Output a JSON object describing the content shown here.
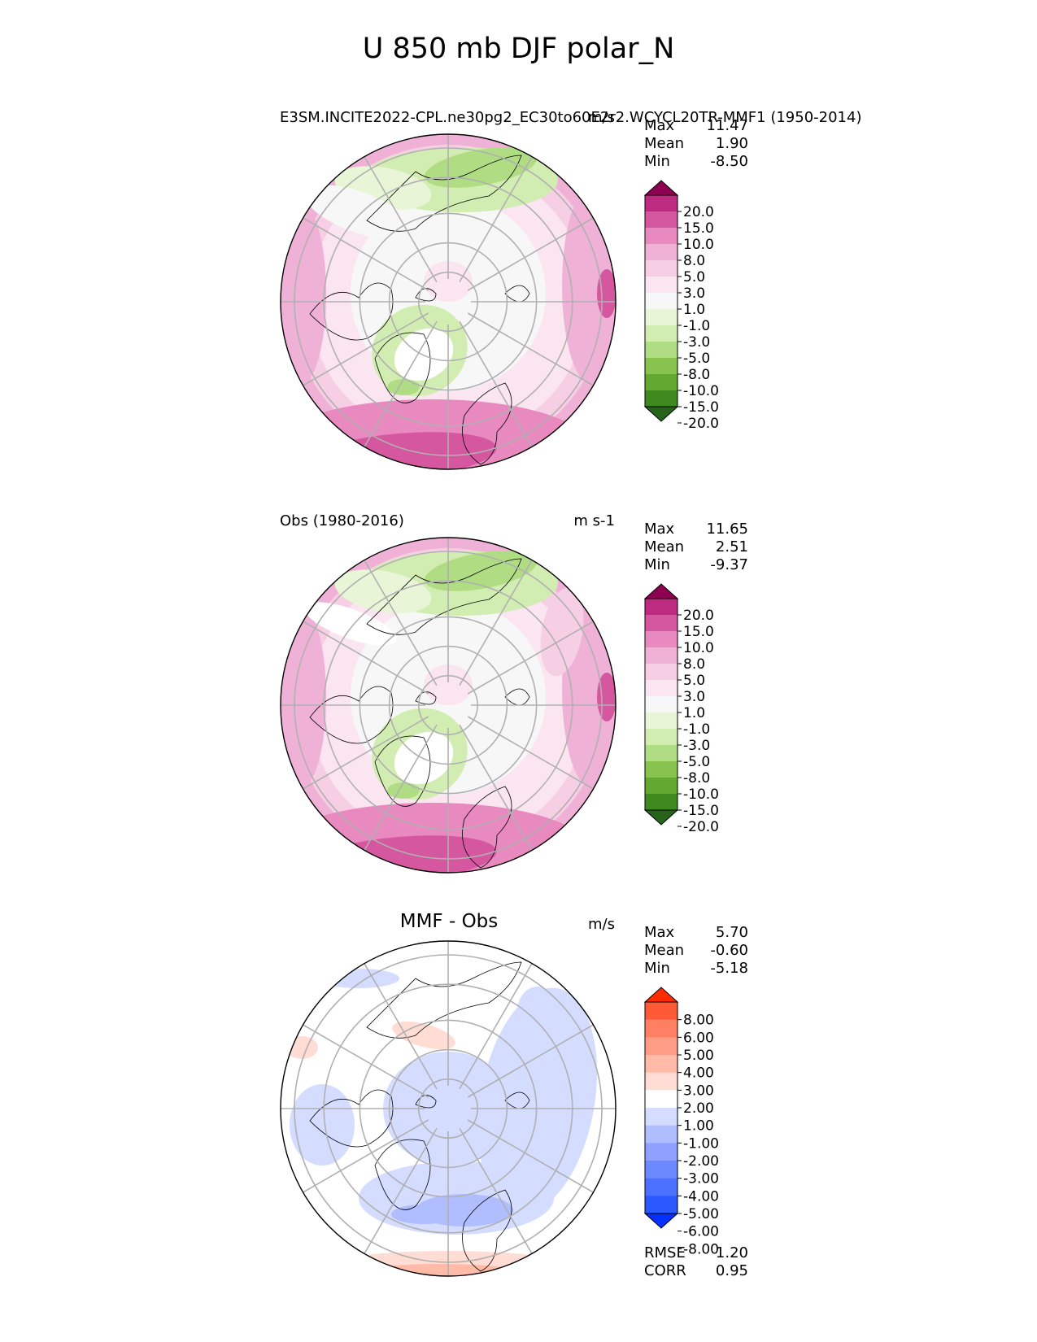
{
  "title": "U 850 mb DJF polar_N",
  "colors": {
    "model_levels": [
      "#276419",
      "#3f8a1f",
      "#62a831",
      "#88c350",
      "#b0dd83",
      "#d2edb2",
      "#e8f5d7",
      "#f7f7f7",
      "#fbe5f0",
      "#f7cfe4",
      "#efb2d6",
      "#e889bf",
      "#d5579f",
      "#bd2a80",
      "#8e0152"
    ],
    "diff_levels": [
      "#0530ff",
      "#2c58ff",
      "#4c70ff",
      "#6c88ff",
      "#8ea1ff",
      "#b0beff",
      "#d4dcff",
      "#ffffff",
      "#ffdcd4",
      "#ffbba8",
      "#ff9c85",
      "#ff7f63",
      "#ff5a38",
      "#ff2c00"
    ]
  },
  "chart_data": [
    {
      "type": "heatmap",
      "projection": "north-polar-stereographic",
      "title_left": "E3SM.INCITE2022-CPL.ne30pg2_EC30to60E2r2.WCYCL20TR-MMF1 (1950-2014)",
      "title_right": "m/s",
      "stats": [
        {
          "label": "Max",
          "value": "11.47"
        },
        {
          "label": "Mean",
          "value": "1.90"
        },
        {
          "label": "Min",
          "value": "-8.50"
        }
      ],
      "colorbar": {
        "levels": [
          "20.0",
          "15.0",
          "10.0",
          "8.0",
          "5.0",
          "3.0",
          "1.0",
          "-1.0",
          "-3.0",
          "-5.0",
          "-8.0",
          "-10.0",
          "-15.0",
          "-20.0"
        ],
        "extend": "both"
      }
    },
    {
      "type": "heatmap",
      "projection": "north-polar-stereographic",
      "title_left": "Obs (1980-2016)",
      "title_right": "m s-1",
      "stats": [
        {
          "label": "Max",
          "value": "11.65"
        },
        {
          "label": "Mean",
          "value": "2.51"
        },
        {
          "label": "Min",
          "value": "-9.37"
        }
      ],
      "colorbar": {
        "levels": [
          "20.0",
          "15.0",
          "10.0",
          "8.0",
          "5.0",
          "3.0",
          "1.0",
          "-1.0",
          "-3.0",
          "-5.0",
          "-8.0",
          "-10.0",
          "-15.0",
          "-20.0"
        ],
        "extend": "both"
      }
    },
    {
      "type": "heatmap",
      "projection": "north-polar-stereographic",
      "title_center": "MMF - Obs",
      "title_right": "m/s",
      "stats": [
        {
          "label": "Max",
          "value": "5.70"
        },
        {
          "label": "Mean",
          "value": "-0.60"
        },
        {
          "label": "Min",
          "value": "-5.18"
        }
      ],
      "colorbar": {
        "levels": [
          "8.00",
          "6.00",
          "5.00",
          "4.00",
          "3.00",
          "2.00",
          "1.00",
          "-1.00",
          "-2.00",
          "-3.00",
          "-4.00",
          "-5.00",
          "-6.00",
          "-8.00"
        ],
        "extend": "both"
      },
      "metrics": [
        {
          "label": "RMSE",
          "value": "1.20"
        },
        {
          "label": "CORR",
          "value": "0.95"
        }
      ]
    }
  ]
}
